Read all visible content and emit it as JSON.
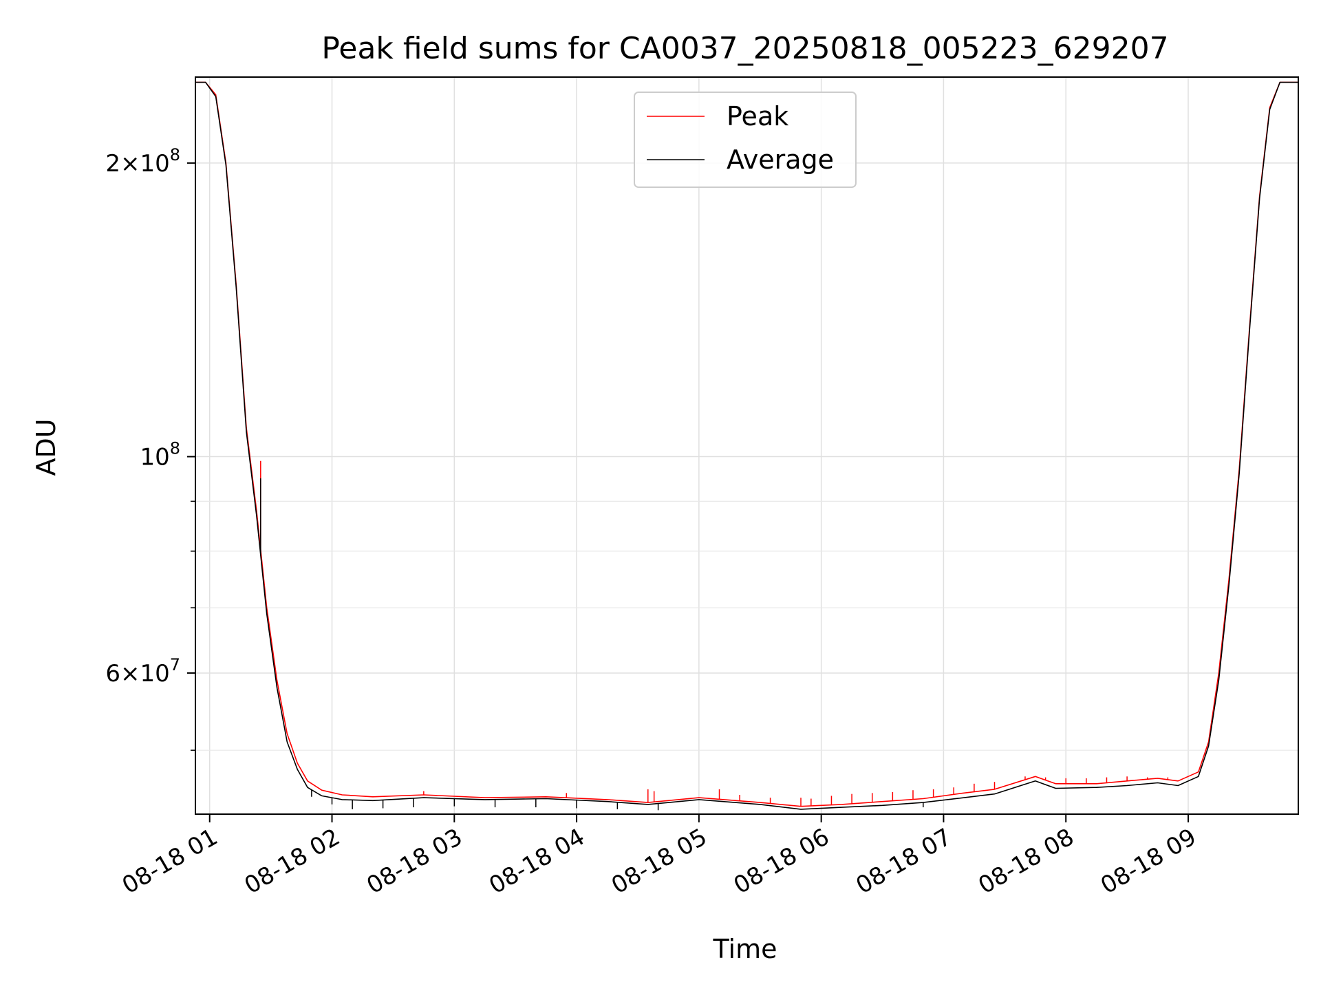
{
  "chart_data": {
    "type": "line",
    "title": "Peak field sums for CA0037_20250818_005223_629207",
    "xlabel": "Time",
    "ylabel": "ADU",
    "y_scale": "log",
    "ylim": [
      43000000,
      245000000
    ],
    "xlim": [
      "2025-08-18 00:53",
      "2025-08-18 09:54"
    ],
    "grid": true,
    "legend_position": "upper center",
    "x_tick_labels": [
      "08-18 01",
      "08-18 02",
      "08-18 03",
      "08-18 04",
      "08-18 05",
      "08-18 06",
      "08-18 07",
      "08-18 08",
      "08-18 09"
    ],
    "x_ticks": [
      "2025-08-18 01:00",
      "2025-08-18 02:00",
      "2025-08-18 03:00",
      "2025-08-18 04:00",
      "2025-08-18 05:00",
      "2025-08-18 06:00",
      "2025-08-18 07:00",
      "2025-08-18 08:00",
      "2025-08-18 09:00"
    ],
    "y_major_ticks": [
      {
        "value": 200000000,
        "mantissa": "2×10",
        "exp": "8"
      },
      {
        "value": 100000000,
        "mantissa": "10",
        "exp": "8"
      },
      {
        "value": 60000000,
        "mantissa": "6×10",
        "exp": "7"
      }
    ],
    "y_minor_ticks": [
      50000000,
      70000000,
      80000000,
      90000000
    ],
    "series": [
      {
        "name": "Peak",
        "color": "#ff0000",
        "x": [
          "2025-08-18 00:53",
          "2025-08-18 00:58",
          "2025-08-18 01:03",
          "2025-08-18 01:08",
          "2025-08-18 01:13",
          "2025-08-18 01:18",
          "2025-08-18 01:23",
          "2025-08-18 01:28",
          "2025-08-18 01:33",
          "2025-08-18 01:38",
          "2025-08-18 01:43",
          "2025-08-18 01:48",
          "2025-08-18 01:55",
          "2025-08-18 02:05",
          "2025-08-18 02:20",
          "2025-08-18 02:45",
          "2025-08-18 03:15",
          "2025-08-18 03:45",
          "2025-08-18 04:15",
          "2025-08-18 04:35",
          "2025-08-18 05:00",
          "2025-08-18 05:30",
          "2025-08-18 05:50",
          "2025-08-18 06:10",
          "2025-08-18 06:30",
          "2025-08-18 06:50",
          "2025-08-18 07:10",
          "2025-08-18 07:25",
          "2025-08-18 07:45",
          "2025-08-18 07:55",
          "2025-08-18 08:15",
          "2025-08-18 08:30",
          "2025-08-18 08:45",
          "2025-08-18 08:55",
          "2025-08-18 09:05",
          "2025-08-18 09:10",
          "2025-08-18 09:15",
          "2025-08-18 09:20",
          "2025-08-18 09:25",
          "2025-08-18 09:30",
          "2025-08-18 09:35",
          "2025-08-18 09:40",
          "2025-08-18 09:45",
          "2025-08-18 09:54"
        ],
        "y": [
          242000000,
          242000000,
          235000000,
          200000000,
          150000000,
          107000000,
          88000000,
          70000000,
          59000000,
          52000000,
          48500000,
          46500000,
          45500000,
          45000000,
          44800000,
          45000000,
          44700000,
          44800000,
          44500000,
          44200000,
          44700000,
          44200000,
          43800000,
          44000000,
          44300000,
          44600000,
          45200000,
          45600000,
          47000000,
          46200000,
          46200000,
          46500000,
          46800000,
          46500000,
          47500000,
          51000000,
          60000000,
          75000000,
          97000000,
          135000000,
          185000000,
          228000000,
          242000000,
          242000000
        ],
        "spikes": [
          {
            "x": "2025-08-18 01:25",
            "y": 99000000
          },
          {
            "x": "2025-08-18 02:45",
            "y": 45400000
          },
          {
            "x": "2025-08-18 03:55",
            "y": 45200000
          },
          {
            "x": "2025-08-18 04:35",
            "y": 45600000
          },
          {
            "x": "2025-08-18 04:38",
            "y": 45400000
          },
          {
            "x": "2025-08-18 05:10",
            "y": 45600000
          },
          {
            "x": "2025-08-18 05:20",
            "y": 45000000
          },
          {
            "x": "2025-08-18 05:35",
            "y": 44700000
          },
          {
            "x": "2025-08-18 05:50",
            "y": 44700000
          },
          {
            "x": "2025-08-18 05:55",
            "y": 44600000
          },
          {
            "x": "2025-08-18 06:05",
            "y": 44900000
          },
          {
            "x": "2025-08-18 06:15",
            "y": 45100000
          },
          {
            "x": "2025-08-18 06:25",
            "y": 45200000
          },
          {
            "x": "2025-08-18 06:35",
            "y": 45300000
          },
          {
            "x": "2025-08-18 06:45",
            "y": 45500000
          },
          {
            "x": "2025-08-18 06:55",
            "y": 45600000
          },
          {
            "x": "2025-08-18 07:05",
            "y": 45800000
          },
          {
            "x": "2025-08-18 07:15",
            "y": 46200000
          },
          {
            "x": "2025-08-18 07:25",
            "y": 46400000
          },
          {
            "x": "2025-08-18 07:40",
            "y": 47000000
          },
          {
            "x": "2025-08-18 07:50",
            "y": 46900000
          },
          {
            "x": "2025-08-18 08:00",
            "y": 46800000
          },
          {
            "x": "2025-08-18 08:10",
            "y": 46800000
          },
          {
            "x": "2025-08-18 08:20",
            "y": 46900000
          },
          {
            "x": "2025-08-18 08:30",
            "y": 47000000
          },
          {
            "x": "2025-08-18 08:40",
            "y": 46900000
          },
          {
            "x": "2025-08-18 08:50",
            "y": 46900000
          }
        ]
      },
      {
        "name": "Average",
        "color": "#000000",
        "x": [
          "2025-08-18 00:53",
          "2025-08-18 00:58",
          "2025-08-18 01:03",
          "2025-08-18 01:08",
          "2025-08-18 01:13",
          "2025-08-18 01:18",
          "2025-08-18 01:23",
          "2025-08-18 01:28",
          "2025-08-18 01:33",
          "2025-08-18 01:38",
          "2025-08-18 01:43",
          "2025-08-18 01:48",
          "2025-08-18 01:55",
          "2025-08-18 02:05",
          "2025-08-18 02:20",
          "2025-08-18 02:45",
          "2025-08-18 03:15",
          "2025-08-18 03:45",
          "2025-08-18 04:15",
          "2025-08-18 04:35",
          "2025-08-18 05:00",
          "2025-08-18 05:30",
          "2025-08-18 05:50",
          "2025-08-18 06:10",
          "2025-08-18 06:30",
          "2025-08-18 06:50",
          "2025-08-18 07:10",
          "2025-08-18 07:25",
          "2025-08-18 07:45",
          "2025-08-18 07:55",
          "2025-08-18 08:15",
          "2025-08-18 08:30",
          "2025-08-18 08:45",
          "2025-08-18 08:55",
          "2025-08-18 09:05",
          "2025-08-18 09:10",
          "2025-08-18 09:15",
          "2025-08-18 09:20",
          "2025-08-18 09:25",
          "2025-08-18 09:30",
          "2025-08-18 09:35",
          "2025-08-18 09:40",
          "2025-08-18 09:45",
          "2025-08-18 09:54"
        ],
        "y": [
          242000000,
          242000000,
          234000000,
          199000000,
          149000000,
          106000000,
          87000000,
          69000000,
          58000000,
          51000000,
          47800000,
          45800000,
          44900000,
          44500000,
          44400000,
          44700000,
          44500000,
          44600000,
          44300000,
          44000000,
          44500000,
          44000000,
          43500000,
          43700000,
          43900000,
          44200000,
          44700000,
          45100000,
          46500000,
          45700000,
          45800000,
          46000000,
          46300000,
          46000000,
          47000000,
          50500000,
          59000000,
          74000000,
          96000000,
          134000000,
          184000000,
          227000000,
          242000000,
          242000000
        ],
        "dips": [
          {
            "x": "2025-08-18 01:25",
            "y": 95000000
          },
          {
            "x": "2025-08-18 01:50",
            "y": 44800000
          },
          {
            "x": "2025-08-18 02:00",
            "y": 44000000
          },
          {
            "x": "2025-08-18 02:10",
            "y": 43500000
          },
          {
            "x": "2025-08-18 02:25",
            "y": 43600000
          },
          {
            "x": "2025-08-18 02:40",
            "y": 43700000
          },
          {
            "x": "2025-08-18 03:00",
            "y": 43800000
          },
          {
            "x": "2025-08-18 03:20",
            "y": 43700000
          },
          {
            "x": "2025-08-18 03:40",
            "y": 43700000
          },
          {
            "x": "2025-08-18 04:00",
            "y": 43600000
          },
          {
            "x": "2025-08-18 04:20",
            "y": 43500000
          },
          {
            "x": "2025-08-18 04:40",
            "y": 43400000
          },
          {
            "x": "2025-08-18 06:50",
            "y": 43700000
          }
        ]
      }
    ]
  }
}
